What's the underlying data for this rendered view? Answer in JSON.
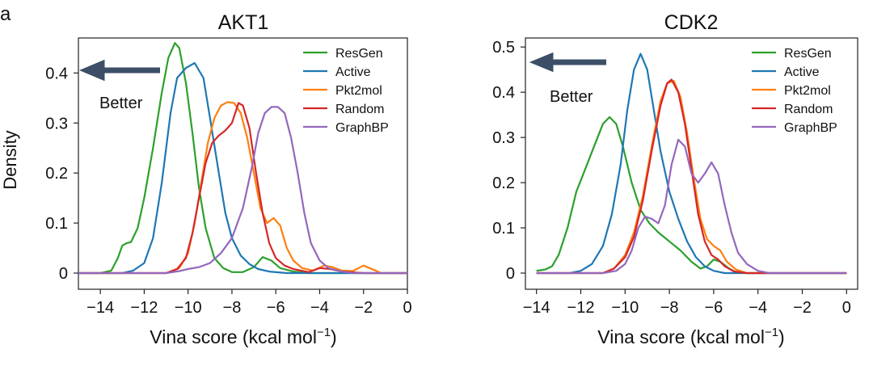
{
  "panel_label": "a",
  "chart_data": [
    {
      "type": "line",
      "title": "AKT1",
      "xlabel": "Vina score (kcal mol",
      "xlabel_sup": "−1",
      "xlabel_close": ")",
      "ylabel": "Density",
      "xlim": [
        -15,
        0
      ],
      "ylim": [
        0,
        0.47
      ],
      "xticks": [
        -14,
        -12,
        -10,
        -8,
        -6,
        -4,
        -2,
        0
      ],
      "xtick_labels": [
        "−14",
        "−12",
        "−10",
        "−8",
        "−6",
        "−4",
        "−2",
        "0"
      ],
      "yticks": [
        0,
        0.1,
        0.2,
        0.3,
        0.4
      ],
      "ytick_labels": [
        "0",
        "0.1",
        "0.2",
        "0.3",
        "0.4"
      ],
      "grid": false,
      "legend_position": "top-right",
      "annotation": {
        "text": "Better",
        "arrow": "left"
      },
      "series": [
        {
          "name": "ResGen",
          "color": "#2ca02c",
          "points": [
            [
              -15,
              0
            ],
            [
              -14,
              0
            ],
            [
              -13.5,
              0.005
            ],
            [
              -13.2,
              0.03
            ],
            [
              -13,
              0.055
            ],
            [
              -12.8,
              0.06
            ],
            [
              -12.6,
              0.062
            ],
            [
              -12.3,
              0.09
            ],
            [
              -12,
              0.15
            ],
            [
              -11.6,
              0.25
            ],
            [
              -11.2,
              0.36
            ],
            [
              -10.9,
              0.43
            ],
            [
              -10.6,
              0.46
            ],
            [
              -10.4,
              0.45
            ],
            [
              -10.1,
              0.38
            ],
            [
              -9.8,
              0.28
            ],
            [
              -9.5,
              0.17
            ],
            [
              -9.2,
              0.09
            ],
            [
              -8.8,
              0.03
            ],
            [
              -8.4,
              0.01
            ],
            [
              -8,
              0.002
            ],
            [
              -7.5,
              0.002
            ],
            [
              -7,
              0.012
            ],
            [
              -6.6,
              0.032
            ],
            [
              -6.2,
              0.025
            ],
            [
              -5.8,
              0.01
            ],
            [
              -5.2,
              0.003
            ],
            [
              -4.5,
              0
            ],
            [
              0,
              0
            ]
          ]
        },
        {
          "name": "Active",
          "color": "#1f77b4",
          "points": [
            [
              -15,
              0
            ],
            [
              -13,
              0
            ],
            [
              -12.5,
              0.005
            ],
            [
              -12,
              0.02
            ],
            [
              -11.6,
              0.07
            ],
            [
              -11.2,
              0.18
            ],
            [
              -10.8,
              0.32
            ],
            [
              -10.5,
              0.39
            ],
            [
              -10.1,
              0.41
            ],
            [
              -9.7,
              0.42
            ],
            [
              -9.3,
              0.39
            ],
            [
              -9,
              0.31
            ],
            [
              -8.6,
              0.2
            ],
            [
              -8.3,
              0.12
            ],
            [
              -8,
              0.07
            ],
            [
              -7.6,
              0.035
            ],
            [
              -7.2,
              0.018
            ],
            [
              -6.8,
              0.008
            ],
            [
              -6.3,
              0.003
            ],
            [
              -5.5,
              0
            ],
            [
              0,
              0
            ]
          ]
        },
        {
          "name": "Pkt2mol",
          "color": "#ff7f0e",
          "points": [
            [
              -15,
              0
            ],
            [
              -11,
              0
            ],
            [
              -10.4,
              0.01
            ],
            [
              -10,
              0.04
            ],
            [
              -9.7,
              0.1
            ],
            [
              -9.4,
              0.18
            ],
            [
              -9.1,
              0.26
            ],
            [
              -8.8,
              0.31
            ],
            [
              -8.5,
              0.335
            ],
            [
              -8.2,
              0.342
            ],
            [
              -7.9,
              0.34
            ],
            [
              -7.6,
              0.32
            ],
            [
              -7.3,
              0.27
            ],
            [
              -7,
              0.2
            ],
            [
              -6.7,
              0.13
            ],
            [
              -6.4,
              0.1
            ],
            [
              -6.1,
              0.11
            ],
            [
              -5.8,
              0.095
            ],
            [
              -5.5,
              0.05
            ],
            [
              -5.2,
              0.025
            ],
            [
              -4.8,
              0.01
            ],
            [
              -4.3,
              0.005
            ],
            [
              -3.8,
              0.015
            ],
            [
              -3.4,
              0.012
            ],
            [
              -3,
              0.005
            ],
            [
              -2.5,
              0.004
            ],
            [
              -2,
              0.015
            ],
            [
              -1.5,
              0.006
            ],
            [
              -1.2,
              0
            ],
            [
              0,
              0
            ]
          ]
        },
        {
          "name": "Random",
          "color": "#d62728",
          "points": [
            [
              -15,
              0
            ],
            [
              -11,
              0
            ],
            [
              -10.5,
              0.008
            ],
            [
              -10.1,
              0.03
            ],
            [
              -9.8,
              0.08
            ],
            [
              -9.5,
              0.15
            ],
            [
              -9.2,
              0.22
            ],
            [
              -8.9,
              0.26
            ],
            [
              -8.6,
              0.275
            ],
            [
              -8.3,
              0.285
            ],
            [
              -8,
              0.3
            ],
            [
              -7.7,
              0.34
            ],
            [
              -7.5,
              0.335
            ],
            [
              -7.2,
              0.29
            ],
            [
              -6.9,
              0.2
            ],
            [
              -6.6,
              0.12
            ],
            [
              -6.3,
              0.06
            ],
            [
              -6,
              0.03
            ],
            [
              -5.6,
              0.015
            ],
            [
              -5.2,
              0.008
            ],
            [
              -4.5,
              0.002
            ],
            [
              -4,
              0.01
            ],
            [
              -3.5,
              0.008
            ],
            [
              -3,
              0.003
            ],
            [
              -2,
              0
            ],
            [
              0,
              0
            ]
          ]
        },
        {
          "name": "GraphBP",
          "color": "#9467bd",
          "points": [
            [
              -15,
              0
            ],
            [
              -11,
              0
            ],
            [
              -10.4,
              0.004
            ],
            [
              -10,
              0.008
            ],
            [
              -9.5,
              0.012
            ],
            [
              -9,
              0.02
            ],
            [
              -8.5,
              0.04
            ],
            [
              -8,
              0.07
            ],
            [
              -7.5,
              0.13
            ],
            [
              -7.1,
              0.21
            ],
            [
              -6.8,
              0.28
            ],
            [
              -6.5,
              0.32
            ],
            [
              -6.2,
              0.332
            ],
            [
              -5.9,
              0.332
            ],
            [
              -5.6,
              0.32
            ],
            [
              -5.3,
              0.27
            ],
            [
              -5,
              0.2
            ],
            [
              -4.7,
              0.12
            ],
            [
              -4.4,
              0.06
            ],
            [
              -4,
              0.025
            ],
            [
              -3.6,
              0.01
            ],
            [
              -3,
              0.003
            ],
            [
              -2.5,
              0
            ],
            [
              0,
              0
            ]
          ]
        }
      ]
    },
    {
      "type": "line",
      "title": "CDK2",
      "xlabel": "Vina score (kcal mol",
      "xlabel_sup": "−1",
      "xlabel_close": ")",
      "ylabel": "",
      "xlim": [
        -14.5,
        0.5
      ],
      "ylim": [
        0,
        0.52
      ],
      "xticks": [
        -14,
        -12,
        -10,
        -8,
        -6,
        -4,
        -2,
        0
      ],
      "xtick_labels": [
        "−14",
        "−12",
        "−10",
        "−8",
        "−6",
        "−4",
        "−2",
        "0"
      ],
      "yticks": [
        0,
        0.1,
        0.2,
        0.3,
        0.4,
        0.5
      ],
      "ytick_labels": [
        "0",
        "0.1",
        "0.2",
        "0.3",
        "0.4",
        "0.5"
      ],
      "grid": false,
      "legend_position": "top-right",
      "annotation": {
        "text": "Better",
        "arrow": "left"
      },
      "series": [
        {
          "name": "ResGen",
          "color": "#2ca02c",
          "points": [
            [
              -14,
              0.005
            ],
            [
              -13.6,
              0.008
            ],
            [
              -13.3,
              0.015
            ],
            [
              -13,
              0.04
            ],
            [
              -12.6,
              0.1
            ],
            [
              -12.2,
              0.18
            ],
            [
              -11.8,
              0.23
            ],
            [
              -11.4,
              0.28
            ],
            [
              -11,
              0.33
            ],
            [
              -10.7,
              0.345
            ],
            [
              -10.4,
              0.33
            ],
            [
              -10.1,
              0.28
            ],
            [
              -9.7,
              0.2
            ],
            [
              -9.3,
              0.14
            ],
            [
              -8.9,
              0.11
            ],
            [
              -8.5,
              0.09
            ],
            [
              -8,
              0.07
            ],
            [
              -7.5,
              0.05
            ],
            [
              -7,
              0.025
            ],
            [
              -6.6,
              0.01
            ],
            [
              -6.3,
              0.015
            ],
            [
              -6,
              0.03
            ],
            [
              -5.7,
              0.025
            ],
            [
              -5.3,
              0.01
            ],
            [
              -5,
              0.002
            ],
            [
              -4.5,
              0
            ],
            [
              0,
              0
            ]
          ]
        },
        {
          "name": "Active",
          "color": "#1f77b4",
          "points": [
            [
              -14,
              0
            ],
            [
              -12.5,
              0
            ],
            [
              -12,
              0.005
            ],
            [
              -11.5,
              0.02
            ],
            [
              -11,
              0.06
            ],
            [
              -10.6,
              0.13
            ],
            [
              -10.2,
              0.24
            ],
            [
              -9.9,
              0.36
            ],
            [
              -9.6,
              0.45
            ],
            [
              -9.3,
              0.485
            ],
            [
              -9,
              0.45
            ],
            [
              -8.7,
              0.36
            ],
            [
              -8.4,
              0.27
            ],
            [
              -8,
              0.18
            ],
            [
              -7.6,
              0.12
            ],
            [
              -7.2,
              0.07
            ],
            [
              -6.8,
              0.035
            ],
            [
              -6.4,
              0.015
            ],
            [
              -6,
              0.005
            ],
            [
              -5.5,
              0
            ],
            [
              0,
              0
            ]
          ]
        },
        {
          "name": "Pkt2mol",
          "color": "#ff7f0e",
          "points": [
            [
              -14,
              0
            ],
            [
              -11,
              0
            ],
            [
              -10.5,
              0.01
            ],
            [
              -10,
              0.04
            ],
            [
              -9.6,
              0.09
            ],
            [
              -9.2,
              0.17
            ],
            [
              -8.8,
              0.28
            ],
            [
              -8.4,
              0.38
            ],
            [
              -8.1,
              0.42
            ],
            [
              -7.8,
              0.425
            ],
            [
              -7.5,
              0.39
            ],
            [
              -7.2,
              0.31
            ],
            [
              -6.9,
              0.21
            ],
            [
              -6.6,
              0.12
            ],
            [
              -6.3,
              0.075
            ],
            [
              -6,
              0.06
            ],
            [
              -5.7,
              0.05
            ],
            [
              -5.4,
              0.025
            ],
            [
              -5,
              0.008
            ],
            [
              -4.5,
              0
            ],
            [
              0,
              0
            ]
          ]
        },
        {
          "name": "Random",
          "color": "#d62728",
          "points": [
            [
              -14,
              0
            ],
            [
              -11,
              0
            ],
            [
              -10.5,
              0.01
            ],
            [
              -10,
              0.035
            ],
            [
              -9.6,
              0.08
            ],
            [
              -9.2,
              0.16
            ],
            [
              -8.8,
              0.27
            ],
            [
              -8.4,
              0.37
            ],
            [
              -8.1,
              0.42
            ],
            [
              -7.9,
              0.428
            ],
            [
              -7.6,
              0.4
            ],
            [
              -7.3,
              0.33
            ],
            [
              -7,
              0.23
            ],
            [
              -6.7,
              0.13
            ],
            [
              -6.4,
              0.07
            ],
            [
              -6.1,
              0.04
            ],
            [
              -5.8,
              0.03
            ],
            [
              -5.5,
              0.015
            ],
            [
              -5.1,
              0.004
            ],
            [
              -4.5,
              0
            ],
            [
              0,
              0
            ]
          ]
        },
        {
          "name": "GraphBP",
          "color": "#9467bd",
          "points": [
            [
              -14,
              0
            ],
            [
              -11,
              0
            ],
            [
              -10.4,
              0.005
            ],
            [
              -10,
              0.02
            ],
            [
              -9.7,
              0.05
            ],
            [
              -9.4,
              0.1
            ],
            [
              -9.1,
              0.125
            ],
            [
              -8.8,
              0.12
            ],
            [
              -8.5,
              0.11
            ],
            [
              -8.2,
              0.15
            ],
            [
              -7.9,
              0.24
            ],
            [
              -7.6,
              0.295
            ],
            [
              -7.3,
              0.28
            ],
            [
              -7,
              0.22
            ],
            [
              -6.7,
              0.2
            ],
            [
              -6.4,
              0.22
            ],
            [
              -6.1,
              0.245
            ],
            [
              -5.8,
              0.22
            ],
            [
              -5.5,
              0.15
            ],
            [
              -5.2,
              0.09
            ],
            [
              -4.9,
              0.045
            ],
            [
              -4.5,
              0.02
            ],
            [
              -4,
              0.005
            ],
            [
              -3.5,
              0
            ],
            [
              0,
              0
            ]
          ]
        }
      ]
    }
  ]
}
